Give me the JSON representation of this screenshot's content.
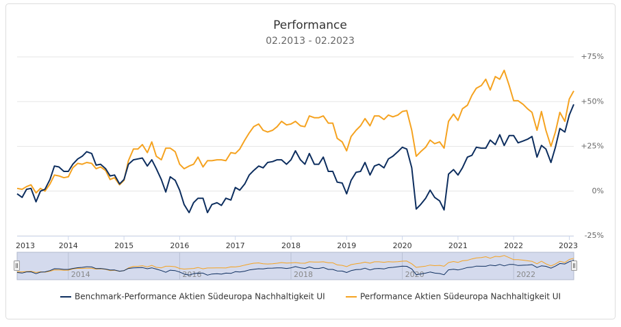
{
  "chart_data": {
    "type": "line",
    "title": "Performance",
    "subtitle": "02.2013 - 02.2023",
    "x": [
      2013.08,
      2013.17,
      2013.25,
      2013.33,
      2013.42,
      2013.5,
      2013.58,
      2013.67,
      2013.75,
      2013.83,
      2013.92,
      2014,
      2014.08,
      2014.17,
      2014.25,
      2014.33,
      2014.42,
      2014.5,
      2014.58,
      2014.67,
      2014.75,
      2014.83,
      2014.92,
      2015,
      2015.08,
      2015.17,
      2015.25,
      2015.33,
      2015.42,
      2015.5,
      2015.58,
      2015.67,
      2015.75,
      2015.83,
      2015.92,
      2016,
      2016.08,
      2016.17,
      2016.25,
      2016.33,
      2016.42,
      2016.5,
      2016.58,
      2016.67,
      2016.75,
      2016.83,
      2016.92,
      2017,
      2017.08,
      2017.17,
      2017.25,
      2017.33,
      2017.42,
      2017.5,
      2017.58,
      2017.67,
      2017.75,
      2017.83,
      2017.92,
      2018,
      2018.08,
      2018.17,
      2018.25,
      2018.33,
      2018.42,
      2018.5,
      2018.58,
      2018.67,
      2018.75,
      2018.83,
      2018.92,
      2019,
      2019.08,
      2019.17,
      2019.25,
      2019.33,
      2019.42,
      2019.5,
      2019.58,
      2019.67,
      2019.75,
      2019.83,
      2019.92,
      2020,
      2020.08,
      2020.17,
      2020.25,
      2020.33,
      2020.42,
      2020.5,
      2020.58,
      2020.67,
      2020.75,
      2020.83,
      2020.92,
      2021,
      2021.08,
      2021.17,
      2021.25,
      2021.33,
      2021.42,
      2021.5,
      2021.58,
      2021.67,
      2021.75,
      2021.83,
      2021.92,
      2022,
      2022.08,
      2022.17,
      2022.25,
      2022.33,
      2022.42,
      2022.5,
      2022.58,
      2022.67,
      2022.75,
      2022.83,
      2022.92,
      2023,
      2023.08
    ],
    "series": [
      {
        "name": "Benchmark-Performance Aktien Südeuropa Nachhaltigkeit UI",
        "color": "#0c2d5e",
        "values": [
          -1.5,
          -3.5,
          1,
          1.5,
          -6,
          0,
          1,
          6.5,
          14,
          13.5,
          11,
          11,
          15,
          18,
          19.5,
          22,
          21,
          14.5,
          15,
          12.5,
          8.5,
          9,
          4,
          6.5,
          15,
          17.5,
          18,
          18.5,
          14,
          17.5,
          12.5,
          6.5,
          -0.5,
          8,
          6,
          0.5,
          -7.5,
          -12,
          -6.5,
          -4,
          -4,
          -12,
          -7.5,
          -6.5,
          -8,
          -4,
          -5,
          2,
          0.5,
          4,
          9,
          11.5,
          14,
          13,
          16,
          16.5,
          17.5,
          17.5,
          15,
          17.5,
          22.5,
          17.5,
          15,
          21,
          15,
          15,
          19,
          11,
          11,
          5,
          4.5,
          -1.5,
          6,
          10.5,
          11,
          16,
          9,
          14,
          15,
          13,
          18,
          19.5,
          22,
          24.5,
          23.5,
          13,
          -10,
          -7.5,
          -4,
          0.5,
          -3.5,
          -5.5,
          -10.5,
          9.5,
          12,
          9,
          13,
          19,
          20,
          24.5,
          24,
          24,
          28.5,
          26,
          31.5,
          25.5,
          31,
          31,
          27,
          28,
          29,
          30.5,
          19,
          25.5,
          23.5,
          16,
          24.5,
          35,
          33,
          42.5,
          48.5
        ]
      },
      {
        "name": "Performance Aktien Südeuropa Nachhaltigkeit UI",
        "color": "#f5a21f",
        "values": [
          1.5,
          1,
          2.5,
          3.5,
          -1,
          1.5,
          0,
          4,
          9,
          8.5,
          7.5,
          8,
          13,
          15.5,
          15,
          16,
          15.5,
          12.5,
          13.5,
          11.5,
          6.5,
          7.5,
          3.5,
          6,
          17,
          23.5,
          23.5,
          26,
          21.5,
          27.5,
          19.5,
          17.5,
          24,
          24,
          22,
          15,
          12.5,
          14,
          15,
          19,
          13.5,
          17,
          17,
          17.5,
          17.5,
          17,
          21.5,
          21,
          23.5,
          28.5,
          32.5,
          36,
          37.5,
          34,
          33,
          34,
          36,
          39,
          37,
          37.5,
          39,
          36.5,
          36,
          42,
          41,
          41,
          42,
          38,
          38,
          29.5,
          27.5,
          22.5,
          30.5,
          34,
          36.5,
          40.5,
          36.5,
          42,
          42,
          40,
          42.5,
          41.5,
          42.5,
          44.5,
          45,
          34,
          19.5,
          22,
          24.5,
          28.5,
          26.5,
          27.5,
          24,
          39,
          43,
          39.5,
          46,
          48,
          53.5,
          57.5,
          59,
          62.5,
          56.5,
          64,
          62.5,
          67.5,
          59,
          50.5,
          50.5,
          48.5,
          46,
          44,
          34,
          44.5,
          34,
          25,
          33,
          44,
          39,
          51.5,
          56
        ]
      }
    ],
    "xlim": [
      2013.08,
      2023.08
    ],
    "xticks": [
      2013,
      2014,
      2015,
      2016,
      2017,
      2018,
      2019,
      2020,
      2021,
      2022,
      2023
    ],
    "ylim": [
      -25,
      75
    ],
    "yticks": [
      {
        "value": -25,
        "label": "-25%"
      },
      {
        "value": 0,
        "label": "0%"
      },
      {
        "value": 25,
        "label": "+25%"
      },
      {
        "value": 50,
        "label": "+50%"
      },
      {
        "value": 75,
        "label": "+75%"
      }
    ],
    "grid": true,
    "legend": "bottom",
    "navigator": {
      "xticks": [
        2014,
        2016,
        2018,
        2020,
        2022
      ]
    }
  }
}
